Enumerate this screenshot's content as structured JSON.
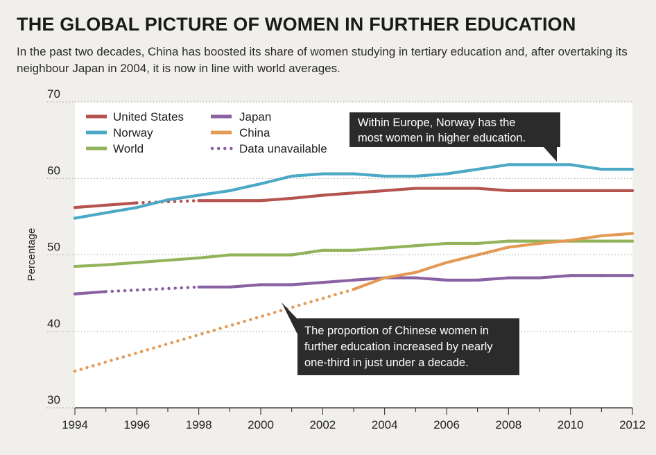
{
  "header": {
    "title": "THE GLOBAL PICTURE OF WOMEN IN FURTHER EDUCATION",
    "subtitle": "In the past two decades, China has boosted its share of women studying in tertiary education and, after overtaking its neighbour Japan in 2004, it is now in line with world averages."
  },
  "legend": {
    "items": [
      {
        "label": "United States",
        "color": "#b5534f",
        "style": "solid"
      },
      {
        "label": "Japan",
        "color": "#8a62a3",
        "style": "solid"
      },
      {
        "label": "Norway",
        "color": "#4ba9c6",
        "style": "solid"
      },
      {
        "label": "China",
        "color": "#e39a55",
        "style": "solid"
      },
      {
        "label": "World",
        "color": "#93b35a",
        "style": "solid"
      },
      {
        "label": "Data unavailable",
        "color": "#8a62a3",
        "style": "dotted"
      }
    ]
  },
  "annotations": {
    "norway_note": {
      "lines": [
        "Within Europe, Norway has the",
        "most women in higher education."
      ]
    },
    "china_note": {
      "lines": [
        "The proportion of Chinese women in",
        "further education increased by nearly",
        "one-third in just under a decade."
      ]
    }
  },
  "chart_data": {
    "type": "line",
    "title": "THE GLOBAL PICTURE OF WOMEN IN FURTHER EDUCATION",
    "xlabel": "",
    "ylabel": "Percentage",
    "xlim": [
      1994,
      2012
    ],
    "ylim": [
      30,
      70
    ],
    "x_ticks": [
      1994,
      1996,
      1998,
      2000,
      2002,
      2004,
      2006,
      2008,
      2010,
      2012
    ],
    "y_ticks": [
      30,
      40,
      50,
      60,
      70
    ],
    "grid": "dotted horizontal",
    "legend_position": "top-left",
    "series": [
      {
        "name": "United States",
        "color": "#b5534f",
        "points": [
          [
            1994,
            56.2
          ],
          [
            1995,
            56.5
          ],
          [
            1996,
            56.8
          ],
          [
            1998,
            57.1
          ],
          [
            1999,
            57.1
          ],
          [
            2000,
            57.1
          ],
          [
            2001,
            57.4
          ],
          [
            2002,
            57.8
          ],
          [
            2003,
            58.1
          ],
          [
            2004,
            58.4
          ],
          [
            2005,
            58.7
          ],
          [
            2006,
            58.7
          ],
          [
            2007,
            58.7
          ],
          [
            2008,
            58.4
          ],
          [
            2009,
            58.4
          ],
          [
            2010,
            58.4
          ],
          [
            2011,
            58.4
          ],
          [
            2012,
            58.4
          ]
        ],
        "gaps": [
          [
            1996,
            1998
          ]
        ]
      },
      {
        "name": "Norway",
        "color": "#4ba9c6",
        "points": [
          [
            1994,
            54.8
          ],
          [
            1995,
            55.5
          ],
          [
            1996,
            56.2
          ],
          [
            1997,
            57.2
          ],
          [
            1998,
            57.8
          ],
          [
            1999,
            58.4
          ],
          [
            2000,
            59.3
          ],
          [
            2001,
            60.3
          ],
          [
            2002,
            60.6
          ],
          [
            2003,
            60.6
          ],
          [
            2004,
            60.3
          ],
          [
            2005,
            60.3
          ],
          [
            2006,
            60.6
          ],
          [
            2007,
            61.2
          ],
          [
            2008,
            61.8
          ],
          [
            2009,
            61.8
          ],
          [
            2010,
            61.8
          ],
          [
            2011,
            61.2
          ],
          [
            2012,
            61.2
          ]
        ],
        "gaps": []
      },
      {
        "name": "World",
        "color": "#93b35a",
        "points": [
          [
            1994,
            48.5
          ],
          [
            1995,
            48.7
          ],
          [
            1996,
            49.0
          ],
          [
            1997,
            49.3
          ],
          [
            1998,
            49.6
          ],
          [
            1999,
            50.0
          ],
          [
            2000,
            50.0
          ],
          [
            2001,
            50.0
          ],
          [
            2002,
            50.6
          ],
          [
            2003,
            50.6
          ],
          [
            2004,
            50.9
          ],
          [
            2005,
            51.2
          ],
          [
            2006,
            51.5
          ],
          [
            2007,
            51.5
          ],
          [
            2008,
            51.8
          ],
          [
            2009,
            51.8
          ],
          [
            2010,
            51.8
          ],
          [
            2011,
            51.8
          ],
          [
            2012,
            51.8
          ]
        ],
        "gaps": []
      },
      {
        "name": "Japan",
        "color": "#8a62a3",
        "points": [
          [
            1994,
            44.9
          ],
          [
            1995,
            45.2
          ],
          [
            1998,
            45.8
          ],
          [
            1999,
            45.8
          ],
          [
            2000,
            46.1
          ],
          [
            2001,
            46.1
          ],
          [
            2002,
            46.4
          ],
          [
            2003,
            46.7
          ],
          [
            2004,
            47.0
          ],
          [
            2005,
            47.0
          ],
          [
            2006,
            46.7
          ],
          [
            2007,
            46.7
          ],
          [
            2008,
            47.0
          ],
          [
            2009,
            47.0
          ],
          [
            2010,
            47.3
          ],
          [
            2011,
            47.3
          ],
          [
            2012,
            47.3
          ]
        ],
        "gaps": [
          [
            1995,
            1998
          ]
        ]
      },
      {
        "name": "China",
        "color": "#e39a55",
        "points": [
          [
            1994,
            34.8
          ],
          [
            2003,
            45.5
          ],
          [
            2004,
            47.0
          ],
          [
            2005,
            47.7
          ],
          [
            2006,
            49.0
          ],
          [
            2007,
            50.0
          ],
          [
            2008,
            51.0
          ],
          [
            2009,
            51.5
          ],
          [
            2010,
            51.9
          ],
          [
            2011,
            52.5
          ],
          [
            2012,
            52.8
          ]
        ],
        "gaps": [
          [
            1994,
            2003
          ]
        ]
      }
    ]
  }
}
